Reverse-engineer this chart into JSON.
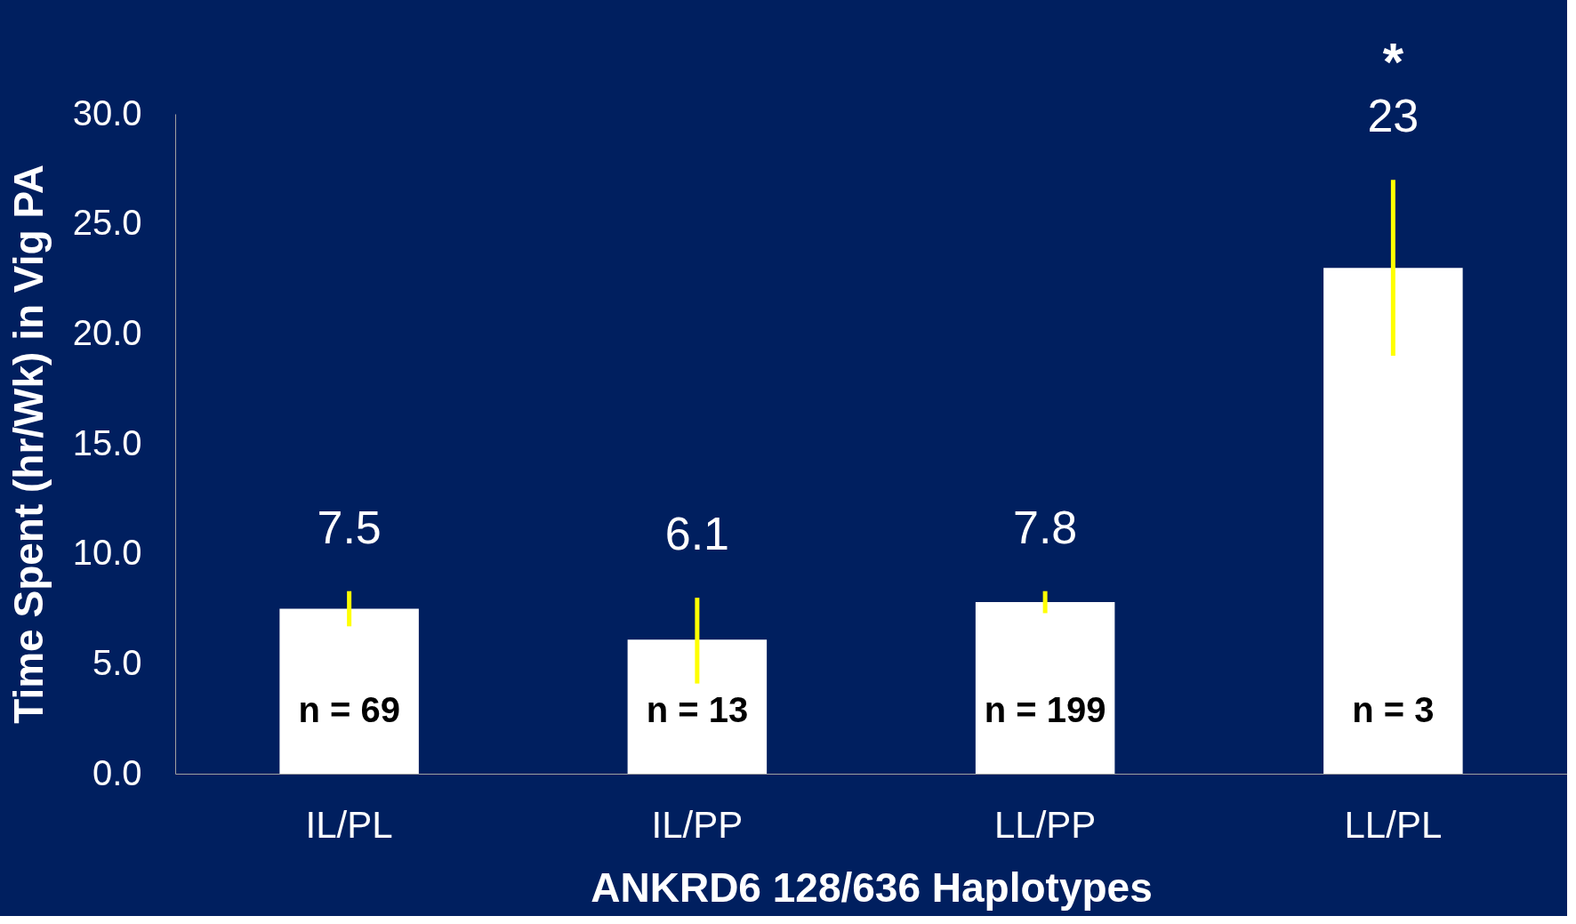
{
  "chart_data": {
    "type": "bar",
    "xlabel": "ANKRD6 128/636 Haplotypes",
    "ylabel": "Time Spent (hr/Wk) in Vig PA",
    "categories": [
      "IL/PL",
      "IL/PP",
      "LL/PP",
      "LL/PL"
    ],
    "values": [
      7.5,
      6.1,
      7.8,
      23
    ],
    "color": "#ffffff",
    "errors": [
      0.8,
      [
        4.1,
        8.0
      ],
      0.5,
      4
    ],
    "data_labels": true,
    "ylim": [
      0,
      30
    ],
    "yticks": [
      {
        "value": 0,
        "label": "0.0"
      },
      {
        "value": 5,
        "label": "5.0"
      },
      {
        "value": 10,
        "label": "10.0"
      },
      {
        "value": 15,
        "label": "15.0"
      },
      {
        "value": 20,
        "label": "20.0"
      },
      {
        "value": 25,
        "label": "25.0"
      },
      {
        "value": 30,
        "label": "30.0"
      }
    ],
    "grid": false,
    "annotations": [
      "n = 69",
      "n = 13",
      "n = 199",
      "n = 3",
      "*"
    ]
  }
}
